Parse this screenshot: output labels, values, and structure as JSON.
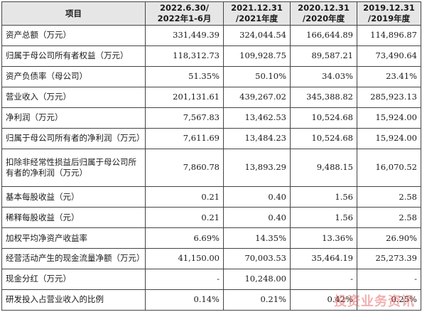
{
  "table": {
    "header": {
      "item": "项目",
      "periods": [
        {
          "line1": "2022.6.30/",
          "line2": "2022年1-6月"
        },
        {
          "line1": "2021.12.31",
          "line2": "/2021年度"
        },
        {
          "line1": "2020.12.31",
          "line2": "/2020年度"
        },
        {
          "line1": "2019.12.31",
          "line2": "/2019年度"
        }
      ]
    },
    "rows": [
      {
        "label": "资产总额（万元）",
        "values": [
          "331,449.39",
          "324,044.54",
          "166,644.89",
          "114,896.87"
        ]
      },
      {
        "label": "归属于母公司所有者权益（万元）",
        "values": [
          "118,312.73",
          "109,928.75",
          "89,587.21",
          "73,490.64"
        ]
      },
      {
        "label": "资产负债率（母公司）",
        "values": [
          "51.35%",
          "50.10%",
          "34.03%",
          "23.41%"
        ]
      },
      {
        "label": "营业收入（万元）",
        "values": [
          "201,131.61",
          "439,267.02",
          "345,388.82",
          "285,923.13"
        ]
      },
      {
        "label": "净利润（万元）",
        "values": [
          "7,567.83",
          "13,462.53",
          "10,524.68",
          "15,924.00"
        ]
      },
      {
        "label": "归属于母公司所有者的净利润（万元）",
        "values": [
          "7,611.69",
          "13,484.23",
          "10,524.68",
          "15,924.00"
        ]
      },
      {
        "label": "扣除非经常性损益后归属于母公司所有者的净利润（万元）",
        "values": [
          "7,860.78",
          "13,893.29",
          "9,488.15",
          "16,070.52"
        ]
      },
      {
        "label": "基本每股收益（元）",
        "values": [
          "0.21",
          "0.40",
          "1.56",
          "2.58"
        ]
      },
      {
        "label": "稀释每股收益（元）",
        "values": [
          "0.21",
          "0.40",
          "1.56",
          "2.58"
        ]
      },
      {
        "label": "加权平均净资产收益率",
        "values": [
          "6.69%",
          "14.35%",
          "13.36%",
          "26.90%"
        ]
      },
      {
        "label": "经营活动产生的现金流量净额（万元）",
        "values": [
          "41,150.00",
          "70,003.53",
          "35,464.19",
          "25,273.39"
        ]
      },
      {
        "label": "现金分红（万元）",
        "values": [
          "-",
          "10,248.00",
          "-",
          "-"
        ]
      },
      {
        "label": "研发投入占营业收入的比例",
        "values": [
          "0.14%",
          "0.21%",
          "0.42%",
          "0.25%"
        ]
      }
    ]
  },
  "watermark": "投资业务资讯"
}
